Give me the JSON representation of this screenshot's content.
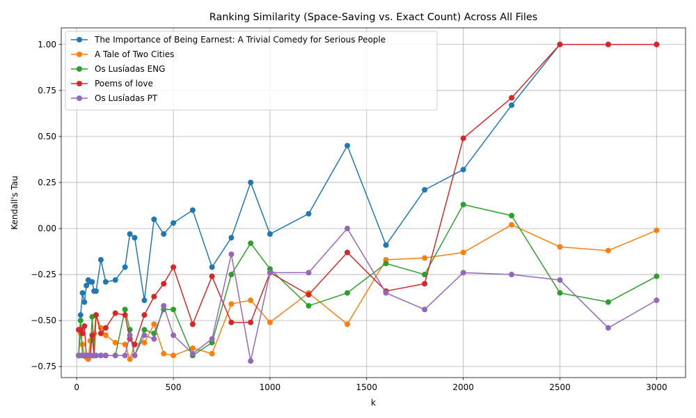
{
  "chart_data": {
    "type": "line",
    "title": "Ranking Similarity (Space-Saving vs. Exact Count) Across All Files",
    "xlabel": "k",
    "ylabel": "Kendall's Tau",
    "xlim": [
      -80,
      3150
    ],
    "ylim": [
      -0.81,
      1.09
    ],
    "xticks": [
      0,
      500,
      1000,
      1500,
      2000,
      2500,
      3000
    ],
    "yticks": [
      -0.75,
      -0.5,
      -0.25,
      0.0,
      0.25,
      0.5,
      0.75,
      1.0
    ],
    "xtick_labels": [
      "0",
      "500",
      "1000",
      "1500",
      "2000",
      "2500",
      "3000"
    ],
    "ytick_labels": [
      "−0.75",
      "−0.50",
      "−0.25",
      "0.00",
      "0.25",
      "0.50",
      "0.75",
      "1.00"
    ],
    "grid": true,
    "legend_position": "top-left",
    "x": [
      10,
      20,
      30,
      40,
      50,
      60,
      70,
      80,
      90,
      100,
      125,
      150,
      200,
      250,
      275,
      300,
      350,
      400,
      450,
      500,
      600,
      700,
      800,
      900,
      1000,
      1200,
      1400,
      1600,
      1800,
      2000,
      2250,
      2500,
      2750,
      3000
    ],
    "series": [
      {
        "name": "The Importance of Being Earnest: A Trivial Comedy for Serious People",
        "color": "#1f77b4",
        "values": [
          -0.69,
          -0.47,
          -0.35,
          -0.4,
          -0.31,
          -0.28,
          -0.29,
          -0.29,
          -0.34,
          -0.34,
          -0.17,
          -0.29,
          -0.28,
          -0.21,
          -0.03,
          -0.05,
          -0.39,
          0.05,
          -0.03,
          0.03,
          0.1,
          -0.21,
          -0.05,
          0.25,
          -0.03,
          0.08,
          0.45,
          -0.09,
          0.21,
          0.32,
          0.67,
          1.0,
          1.0,
          1.0
        ]
      },
      {
        "name": "A Tale of Two Cities",
        "color": "#ff7f0e",
        "values": [
          -0.69,
          -0.57,
          -0.63,
          -0.69,
          -0.7,
          -0.71,
          -0.61,
          -0.6,
          -0.57,
          -0.47,
          -0.54,
          -0.58,
          -0.62,
          -0.63,
          -0.71,
          -0.63,
          -0.62,
          -0.52,
          -0.68,
          -0.69,
          -0.65,
          -0.68,
          -0.41,
          -0.39,
          -0.51,
          -0.35,
          -0.52,
          -0.17,
          -0.16,
          -0.13,
          0.02,
          -0.1,
          -0.12,
          -0.01
        ]
      },
      {
        "name": "Os Lusíadas ENG",
        "color": "#2ca02c",
        "values": [
          -0.69,
          -0.5,
          -0.69,
          -0.69,
          -0.69,
          -0.69,
          -0.69,
          -0.48,
          -0.69,
          -0.69,
          -0.69,
          -0.69,
          -0.69,
          -0.44,
          -0.55,
          -0.69,
          -0.55,
          -0.57,
          -0.44,
          -0.44,
          -0.69,
          -0.62,
          -0.25,
          -0.08,
          -0.22,
          -0.42,
          -0.35,
          -0.19,
          -0.25,
          0.13,
          0.07,
          -0.35,
          -0.4,
          -0.26
        ]
      },
      {
        "name": "Poems of love",
        "color": "#d62728",
        "values": [
          -0.55,
          -0.55,
          -0.57,
          -0.53,
          -0.69,
          -0.69,
          -0.69,
          -0.58,
          -0.69,
          -0.47,
          -0.57,
          -0.54,
          -0.46,
          -0.47,
          -0.6,
          -0.63,
          -0.47,
          -0.37,
          -0.3,
          -0.21,
          -0.52,
          -0.26,
          -0.51,
          -0.51,
          -0.24,
          -0.36,
          -0.13,
          -0.34,
          -0.3,
          0.49,
          0.71,
          1.0,
          1.0,
          1.0
        ]
      },
      {
        "name": "Os Lusíadas PT",
        "color": "#9467bd",
        "values": [
          -0.69,
          -0.69,
          -0.69,
          -0.69,
          -0.69,
          -0.69,
          -0.69,
          -0.69,
          -0.69,
          -0.69,
          -0.69,
          -0.69,
          -0.69,
          -0.69,
          -0.58,
          -0.69,
          -0.58,
          -0.6,
          -0.42,
          -0.58,
          -0.68,
          -0.6,
          -0.14,
          -0.72,
          -0.24,
          -0.24,
          0.0,
          -0.35,
          -0.44,
          -0.24,
          -0.25,
          -0.28,
          -0.54,
          -0.39
        ]
      }
    ]
  }
}
